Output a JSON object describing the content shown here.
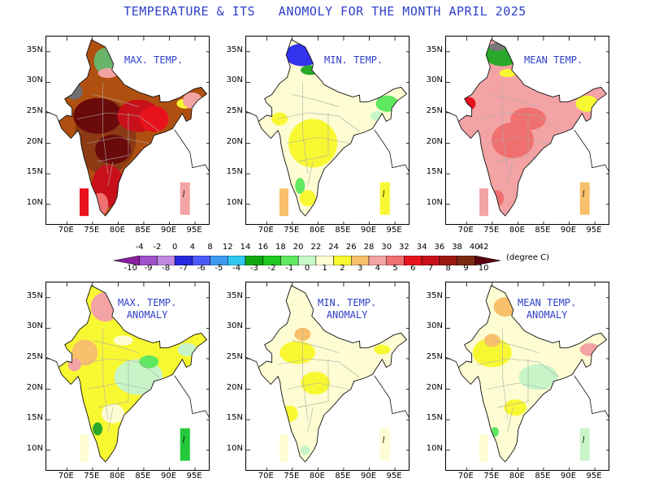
{
  "title": "TEMPERATURE & ITS   ANOMOLY FOR THE MONTH APRIL 2025",
  "axes": {
    "lat_labels": [
      "35N",
      "30N",
      "25N",
      "20N",
      "15N",
      "10N"
    ],
    "lon_labels": [
      "70E",
      "75E",
      "80E",
      "85E",
      "90E",
      "95E"
    ]
  },
  "panels": [
    {
      "id": "max",
      "label": "MAX. TEMP.",
      "scheme": "absolute",
      "palette": "hot",
      "island_a": "#e8121c",
      "island_b": "#f4a3a4"
    },
    {
      "id": "min",
      "label": "MIN. TEMP.",
      "scheme": "absolute",
      "palette": "mild",
      "island_a": "#f8c06a",
      "island_b": "#f8f832"
    },
    {
      "id": "mean",
      "label": "MEAN TEMP.",
      "scheme": "absolute",
      "palette": "warm",
      "island_a": "#f4a3a4",
      "island_b": "#f8c06a"
    },
    {
      "id": "max_anom",
      "label": "MAX. TEMP.\nANOMALY",
      "scheme": "anomaly",
      "palette": "anom_hot",
      "island_a": "#fefcd2",
      "island_b": "#22c93a"
    },
    {
      "id": "min_anom",
      "label": "MIN. TEMP.\nANOMALY",
      "scheme": "anomaly",
      "palette": "anom_mild",
      "island_a": "#fefcd2",
      "island_b": "#fefcd2"
    },
    {
      "id": "mean_anom",
      "label": "MEAN TEMP.\nANOMALY",
      "scheme": "anomaly",
      "palette": "anom_warm",
      "island_a": "#fefcd2",
      "island_b": "#c8f5c8"
    }
  ],
  "colorbar": {
    "top_labels": [
      "-4",
      "-2",
      "0",
      "4",
      "8",
      "12",
      "14",
      "16",
      "18",
      "20",
      "22",
      "24",
      "26",
      "28",
      "30",
      "32",
      "34",
      "36",
      "38",
      "40",
      "42"
    ],
    "bottom_labels": [
      "-10",
      "-9",
      "-8",
      "-7",
      "-6",
      "-5",
      "-4",
      "-3",
      "-2",
      "-1",
      "0",
      "1",
      "2",
      "3",
      "4",
      "5",
      "6",
      "7",
      "8",
      "9",
      "10"
    ],
    "colors": [
      "#8a1ea0",
      "#a050c8",
      "#c08ae0",
      "#2828e0",
      "#4b5af8",
      "#3c9af0",
      "#30c8f0",
      "#10a810",
      "#20c820",
      "#60e860",
      "#c8f8c8",
      "#fefcd2",
      "#f8f832",
      "#f8c06a",
      "#f4a3a4",
      "#f07070",
      "#e8121c",
      "#c8101a",
      "#9a1a10",
      "#7a2a10",
      "#5a0010"
    ],
    "units": "(degree C)"
  }
}
